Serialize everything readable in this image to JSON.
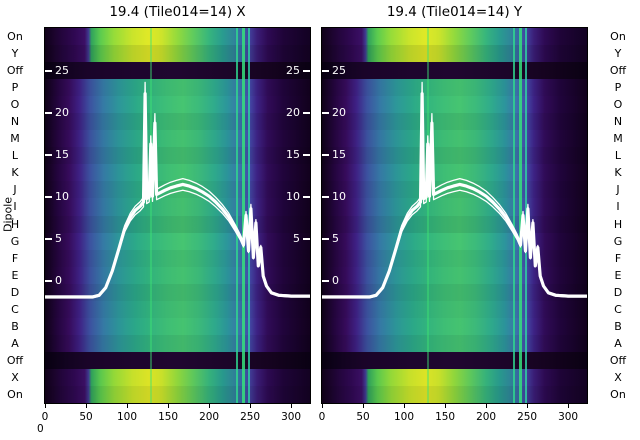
{
  "titles": {
    "left": "19.4 (Tile014=14) X",
    "right": "19.4 (Tile014=14) Y"
  },
  "axis": {
    "dipole_label": "Dipole",
    "dipole_ticks": [
      "On",
      "Y",
      "Off",
      "P",
      "O",
      "N",
      "M",
      "L",
      "K",
      "J",
      "I",
      "H",
      "G",
      "F",
      "E",
      "D",
      "C",
      "B",
      "A",
      "Off",
      "X",
      "On"
    ],
    "x_ticks": [
      "0",
      "50",
      "100",
      "150",
      "200",
      "250",
      "300"
    ],
    "inner_ticks_left": [
      "25",
      "20",
      "15",
      "10",
      "5",
      "0"
    ],
    "inner_ticks_right": [
      "25",
      "20",
      "15",
      "10",
      "5"
    ],
    "stray_zero": "0"
  },
  "rows": [
    {
      "label": "On",
      "type": "bright"
    },
    {
      "label": "Y",
      "type": "bright"
    },
    {
      "label": "Off",
      "type": "dark"
    },
    {
      "label": "P",
      "type": "mid"
    },
    {
      "label": "O",
      "type": "mid"
    },
    {
      "label": "N",
      "type": "mid"
    },
    {
      "label": "M",
      "type": "mid"
    },
    {
      "label": "L",
      "type": "mid"
    },
    {
      "label": "K",
      "type": "mid"
    },
    {
      "label": "J",
      "type": "mid"
    },
    {
      "label": "I",
      "type": "mid"
    },
    {
      "label": "H",
      "type": "mid"
    },
    {
      "label": "G",
      "type": "mid"
    },
    {
      "label": "F",
      "type": "mid"
    },
    {
      "label": "E",
      "type": "mid"
    },
    {
      "label": "D",
      "type": "mid"
    },
    {
      "label": "C",
      "type": "mid"
    },
    {
      "label": "B",
      "type": "mid"
    },
    {
      "label": "A",
      "type": "mid"
    },
    {
      "label": "Off",
      "type": "dark"
    },
    {
      "label": "X",
      "type": "bright"
    },
    {
      "label": "On",
      "type": "bright"
    }
  ],
  "heatmap_streaks": [
    {
      "x": 128,
      "width": 2,
      "color": "#3fe573",
      "opacity": 0.45
    },
    {
      "x": 233,
      "width": 2,
      "color": "#2fd98e",
      "opacity": 0.8
    },
    {
      "x": 240,
      "width": 3,
      "color": "#36e07c",
      "opacity": 0.85
    },
    {
      "x": 247,
      "width": 2,
      "color": "#2ed4a3",
      "opacity": 0.8
    }
  ],
  "chart_data": {
    "type": "heatmap",
    "panels": [
      {
        "title": "19.4 (Tile014=14) X"
      },
      {
        "title": "19.4 (Tile014=14) Y"
      }
    ],
    "colormap": "viridis",
    "x_range": [
      0,
      323
    ],
    "x_ticks": [
      0,
      50,
      100,
      150,
      200,
      250,
      300
    ],
    "ylabel": "Dipole",
    "y_categories_top_to_bottom": [
      "On",
      "Y",
      "Off",
      "P",
      "O",
      "N",
      "M",
      "L",
      "K",
      "J",
      "I",
      "H",
      "G",
      "F",
      "E",
      "D",
      "C",
      "B",
      "A",
      "Off",
      "X",
      "On"
    ],
    "inner_value_ticks": [
      25,
      20,
      15,
      10,
      5,
      0
    ],
    "band_summary": {
      "bright_rows": [
        "On",
        "Y",
        "X",
        "On"
      ],
      "dark_rows": [
        "Off",
        "Off"
      ],
      "gradient_rows": "P through A show a blue-green-purple spectrum versus channel"
    },
    "curve": {
      "name": "white overlay trace (value vs channel), same shape in both panels",
      "points": [
        [
          0,
          -1.9
        ],
        [
          40,
          -1.9
        ],
        [
          58,
          -1.9
        ],
        [
          66,
          -1.7
        ],
        [
          74,
          -0.8
        ],
        [
          82,
          1.2
        ],
        [
          90,
          3.8
        ],
        [
          97,
          6.2
        ],
        [
          104,
          7.6
        ],
        [
          110,
          8.4
        ],
        [
          116,
          8.9
        ],
        [
          120,
          9.4
        ],
        [
          122,
          22.3
        ],
        [
          124,
          9.8
        ],
        [
          127,
          10.0
        ],
        [
          129,
          16.3
        ],
        [
          131,
          10.1
        ],
        [
          134,
          18.8
        ],
        [
          136,
          10.3
        ],
        [
          140,
          10.5
        ],
        [
          146,
          10.8
        ],
        [
          153,
          11.1
        ],
        [
          160,
          11.3
        ],
        [
          168,
          11.5
        ],
        [
          176,
          11.3
        ],
        [
          184,
          11.0
        ],
        [
          192,
          10.6
        ],
        [
          200,
          10.1
        ],
        [
          208,
          9.4
        ],
        [
          216,
          8.6
        ],
        [
          224,
          7.6
        ],
        [
          232,
          6.3
        ],
        [
          238,
          5.2
        ],
        [
          242,
          4.3
        ],
        [
          245,
          7.8
        ],
        [
          248,
          3.6
        ],
        [
          251,
          8.6
        ],
        [
          254,
          2.8
        ],
        [
          257,
          6.9
        ],
        [
          260,
          1.8
        ],
        [
          263,
          4.0
        ],
        [
          266,
          0.6
        ],
        [
          270,
          -0.6
        ],
        [
          276,
          -1.4
        ],
        [
          285,
          -1.7
        ],
        [
          300,
          -1.8
        ],
        [
          323,
          -1.8
        ]
      ]
    }
  }
}
